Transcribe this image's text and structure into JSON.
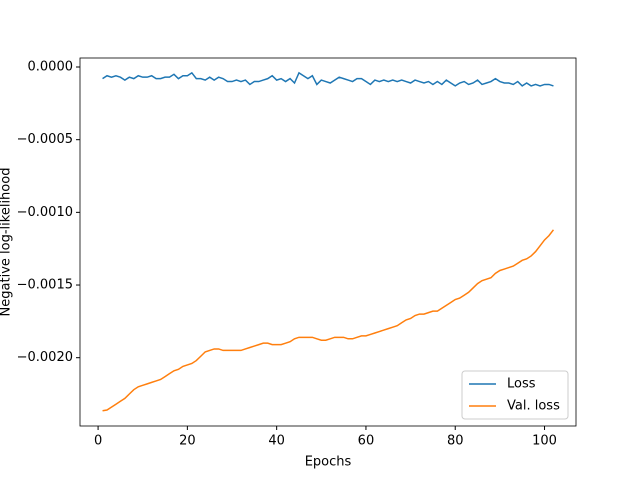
{
  "chart_data": {
    "type": "line",
    "xlabel": "Epochs",
    "ylabel": "Negative log-likelihood",
    "x": [
      1,
      2,
      3,
      4,
      5,
      6,
      7,
      8,
      9,
      10,
      11,
      12,
      13,
      14,
      15,
      16,
      17,
      18,
      19,
      20,
      21,
      22,
      23,
      24,
      25,
      26,
      27,
      28,
      29,
      30,
      31,
      32,
      33,
      34,
      35,
      36,
      37,
      38,
      39,
      40,
      41,
      42,
      43,
      44,
      45,
      46,
      47,
      48,
      49,
      50,
      51,
      52,
      53,
      54,
      55,
      56,
      57,
      58,
      59,
      60,
      61,
      62,
      63,
      64,
      65,
      66,
      67,
      68,
      69,
      70,
      71,
      72,
      73,
      74,
      75,
      76,
      77,
      78,
      79,
      80,
      81,
      82,
      83,
      84,
      85,
      86,
      87,
      88,
      89,
      90,
      91,
      92,
      93,
      94,
      95,
      96,
      97,
      98,
      99,
      100,
      101,
      102
    ],
    "series": [
      {
        "name": "Loss",
        "color": "#1f77b4",
        "values": [
          -8e-05,
          -6e-05,
          -7e-05,
          -6e-05,
          -7e-05,
          -9e-05,
          -7e-05,
          -8e-05,
          -6e-05,
          -7e-05,
          -7e-05,
          -6e-05,
          -8e-05,
          -8e-05,
          -7e-05,
          -7e-05,
          -5e-05,
          -8e-05,
          -6e-05,
          -6e-05,
          -4e-05,
          -8e-05,
          -8e-05,
          -9e-05,
          -7e-05,
          -9e-05,
          -7e-05,
          -8e-05,
          -0.0001,
          -0.0001,
          -9e-05,
          -0.0001,
          -9e-05,
          -0.00012,
          -0.0001,
          -0.0001,
          -9e-05,
          -8e-05,
          -6e-05,
          -9e-05,
          -8e-05,
          -0.0001,
          -8e-05,
          -0.00011,
          -4e-05,
          -6e-05,
          -8e-05,
          -6e-05,
          -0.00012,
          -9e-05,
          -0.0001,
          -0.00011,
          -9e-05,
          -7e-05,
          -8e-05,
          -9e-05,
          -0.0001,
          -8e-05,
          -8e-05,
          -0.0001,
          -0.00012,
          -9e-05,
          -0.0001,
          -9e-05,
          -0.0001,
          -9e-05,
          -0.0001,
          -9e-05,
          -0.0001,
          -0.00011,
          -9e-05,
          -0.0001,
          -0.00011,
          -0.0001,
          -0.00012,
          -0.0001,
          -0.00012,
          -9e-05,
          -0.00011,
          -0.00013,
          -0.00011,
          -0.0001,
          -0.00012,
          -0.00011,
          -9e-05,
          -0.00012,
          -0.00011,
          -0.0001,
          -8e-05,
          -0.0001,
          -0.00011,
          -0.00011,
          -0.00012,
          -0.0001,
          -0.00013,
          -0.00011,
          -0.00013,
          -0.00012,
          -0.00013,
          -0.00012,
          -0.00012,
          -0.00013
        ]
      },
      {
        "name": "Val. loss",
        "color": "#ff7f0e",
        "values": [
          -0.002365,
          -0.00236,
          -0.00234,
          -0.00232,
          -0.0023,
          -0.00228,
          -0.00225,
          -0.00222,
          -0.0022,
          -0.00219,
          -0.00218,
          -0.00217,
          -0.00216,
          -0.00215,
          -0.00213,
          -0.00211,
          -0.00209,
          -0.00208,
          -0.00206,
          -0.00205,
          -0.00204,
          -0.00202,
          -0.00199,
          -0.00196,
          -0.00195,
          -0.00194,
          -0.00194,
          -0.00195,
          -0.00195,
          -0.00195,
          -0.00195,
          -0.00195,
          -0.00194,
          -0.00193,
          -0.00192,
          -0.00191,
          -0.0019,
          -0.0019,
          -0.00191,
          -0.00191,
          -0.00191,
          -0.0019,
          -0.00189,
          -0.00187,
          -0.00186,
          -0.00186,
          -0.00186,
          -0.00186,
          -0.00187,
          -0.00188,
          -0.00188,
          -0.00187,
          -0.00186,
          -0.00186,
          -0.00186,
          -0.00187,
          -0.00187,
          -0.00186,
          -0.00185,
          -0.00185,
          -0.00184,
          -0.00183,
          -0.00182,
          -0.00181,
          -0.0018,
          -0.00179,
          -0.00178,
          -0.00176,
          -0.00174,
          -0.00173,
          -0.00171,
          -0.0017,
          -0.0017,
          -0.00169,
          -0.00168,
          -0.00168,
          -0.00166,
          -0.00164,
          -0.00162,
          -0.0016,
          -0.00159,
          -0.00157,
          -0.00155,
          -0.00152,
          -0.00149,
          -0.00147,
          -0.00146,
          -0.00145,
          -0.00142,
          -0.0014,
          -0.00139,
          -0.00138,
          -0.00137,
          -0.00135,
          -0.00133,
          -0.00132,
          -0.0013,
          -0.00127,
          -0.00123,
          -0.00119,
          -0.00116,
          -0.00112
        ]
      }
    ],
    "xlim": [
      -4.05,
      107.05
    ],
    "xticks": [
      0,
      20,
      40,
      60,
      80,
      100
    ],
    "ylim": [
      -0.00247,
      6.2e-05
    ],
    "yticks": [
      {
        "value": 0,
        "label": "0.0000"
      },
      {
        "value": -0.0005,
        "label": "−0.0005"
      },
      {
        "value": -0.001,
        "label": "−0.0010"
      },
      {
        "value": -0.0015,
        "label": "−0.0015"
      },
      {
        "value": -0.002,
        "label": "−0.0020"
      }
    ],
    "legend": "lower right"
  }
}
